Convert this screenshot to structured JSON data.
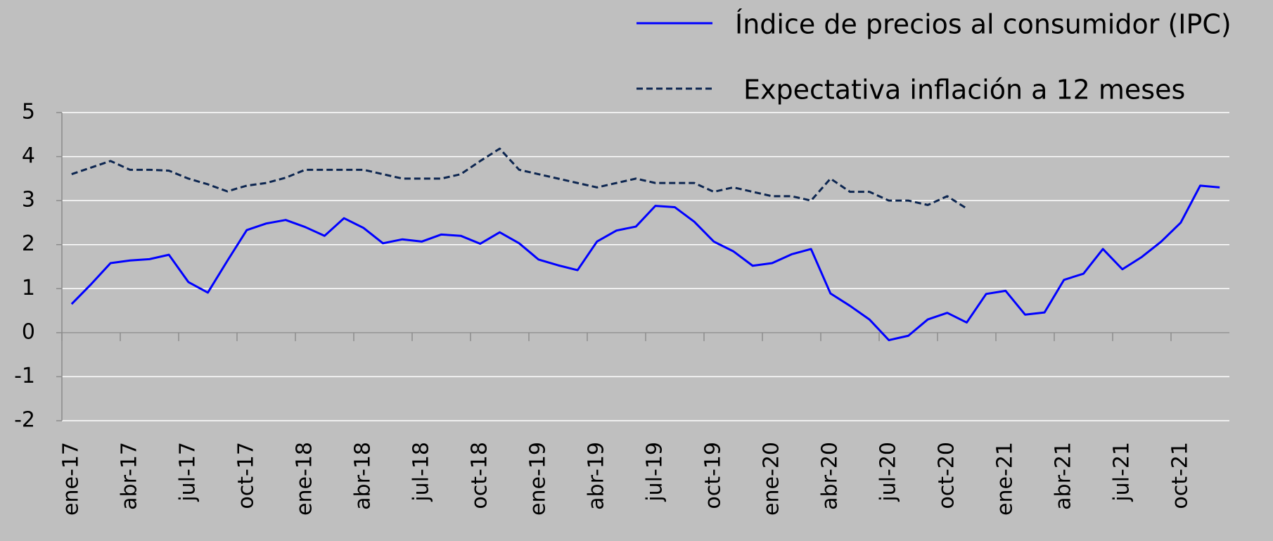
{
  "chart_data": {
    "type": "line",
    "categories": [
      "ene-17",
      null,
      null,
      "abr-17",
      null,
      null,
      "jul-17",
      null,
      null,
      "oct-17",
      null,
      null,
      "ene-18",
      null,
      null,
      "abr-18",
      null,
      null,
      "jul-18",
      null,
      null,
      "oct-18",
      null,
      null,
      "ene-19",
      null,
      null,
      "abr-19",
      null,
      null,
      "jul-19",
      null,
      null,
      "oct-19",
      null,
      null,
      "ene-20",
      null,
      null,
      "abr-20",
      null,
      null,
      "jul-20",
      null,
      null,
      "oct-20",
      null,
      null,
      "ene-21",
      null,
      null,
      "abr-21",
      null,
      null,
      "jul-21",
      null,
      null,
      "oct-21",
      null,
      null
    ],
    "series": [
      {
        "name": "Índice de precios al consumidor (IPC)",
        "color": "#0000ff",
        "dash": false,
        "values": [
          0.65,
          1.1,
          1.58,
          1.64,
          1.67,
          1.77,
          1.15,
          0.91,
          1.63,
          2.33,
          2.48,
          2.56,
          2.4,
          2.2,
          2.6,
          2.38,
          2.03,
          2.12,
          2.07,
          2.23,
          2.2,
          2.02,
          2.28,
          2.03,
          1.66,
          1.53,
          1.42,
          2.07,
          2.32,
          2.41,
          2.88,
          2.85,
          2.52,
          2.07,
          1.85,
          1.52,
          1.58,
          1.78,
          1.9,
          0.89,
          0.61,
          0.3,
          -0.17,
          -0.07,
          0.3,
          0.45,
          0.23,
          0.88,
          0.95,
          0.41,
          0.46,
          1.2,
          1.34,
          1.9,
          1.44,
          1.72,
          2.07,
          2.5,
          3.34,
          3.3
        ]
      },
      {
        "name": "Expectativa inflación a 12 meses",
        "color": "#0d2650",
        "dash": true,
        "values": [
          3.6,
          3.75,
          3.9,
          3.7,
          3.7,
          3.68,
          3.5,
          3.37,
          3.21,
          3.34,
          3.4,
          3.52,
          3.7,
          3.7,
          3.7,
          3.7,
          3.6,
          3.5,
          3.5,
          3.5,
          3.6,
          3.9,
          4.18,
          3.7,
          3.6,
          3.5,
          3.4,
          3.3,
          3.4,
          3.5,
          3.4,
          3.4,
          3.4,
          3.2,
          3.3,
          3.2,
          3.1,
          3.1,
          3.0,
          3.5,
          3.2,
          3.2,
          3.0,
          3.0,
          2.9,
          3.1,
          2.82,
          null,
          null,
          null,
          null,
          null,
          null,
          null,
          null,
          null,
          null,
          null,
          null,
          null
        ]
      }
    ],
    "ylim": [
      -2,
      5
    ],
    "yticks": [
      -2,
      -1,
      0,
      1,
      2,
      3,
      4,
      5
    ],
    "grid": true,
    "legend": "top-right"
  }
}
